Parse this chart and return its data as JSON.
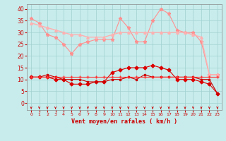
{
  "x": [
    0,
    1,
    2,
    3,
    4,
    5,
    6,
    7,
    8,
    9,
    10,
    11,
    12,
    13,
    14,
    15,
    16,
    17,
    18,
    19,
    20,
    21,
    22,
    23
  ],
  "line1": [
    36,
    34,
    29,
    28,
    25,
    21,
    25,
    26,
    27,
    27,
    27,
    36,
    32,
    26,
    26,
    35,
    40,
    38,
    31,
    30,
    30,
    26,
    12,
    12
  ],
  "line2": [
    34,
    33,
    32,
    31,
    30,
    29,
    29,
    28,
    28,
    28,
    29,
    30,
    30,
    30,
    30,
    30,
    30,
    30,
    30,
    30,
    29,
    28,
    12,
    12
  ],
  "line3": [
    11,
    11,
    11,
    10,
    10,
    8,
    8,
    8,
    9,
    9,
    13,
    14,
    15,
    15,
    15,
    16,
    15,
    14,
    10,
    10,
    10,
    9,
    8,
    4
  ],
  "line4": [
    11,
    11,
    12,
    11,
    10,
    10,
    10,
    9,
    9,
    9,
    10,
    10,
    11,
    10,
    12,
    11,
    11,
    11,
    11,
    11,
    11,
    10,
    10,
    4
  ],
  "line5": [
    11,
    11,
    11,
    11,
    11,
    11,
    11,
    11,
    11,
    11,
    11,
    11,
    11,
    11,
    11,
    11,
    11,
    11,
    11,
    11,
    11,
    11,
    11,
    11
  ],
  "bg_color": "#c8ecec",
  "grid_color": "#a0d0d0",
  "line1_color": "#ff9090",
  "line2_color": "#ffb0b0",
  "line3_color": "#dd0000",
  "line4_color": "#cc0000",
  "line5_color": "#ff3333",
  "arrow_color": "#cc0000",
  "xlabel": "Vent moyen/en rafales ( km/h )",
  "xlabel_color": "#cc0000",
  "tick_color": "#cc0000",
  "spine_color": "#888888",
  "ylabel_ticks": [
    0,
    5,
    10,
    15,
    20,
    25,
    30,
    35,
    40
  ],
  "ylim": [
    -3,
    42
  ],
  "xlim": [
    -0.5,
    23.5
  ]
}
